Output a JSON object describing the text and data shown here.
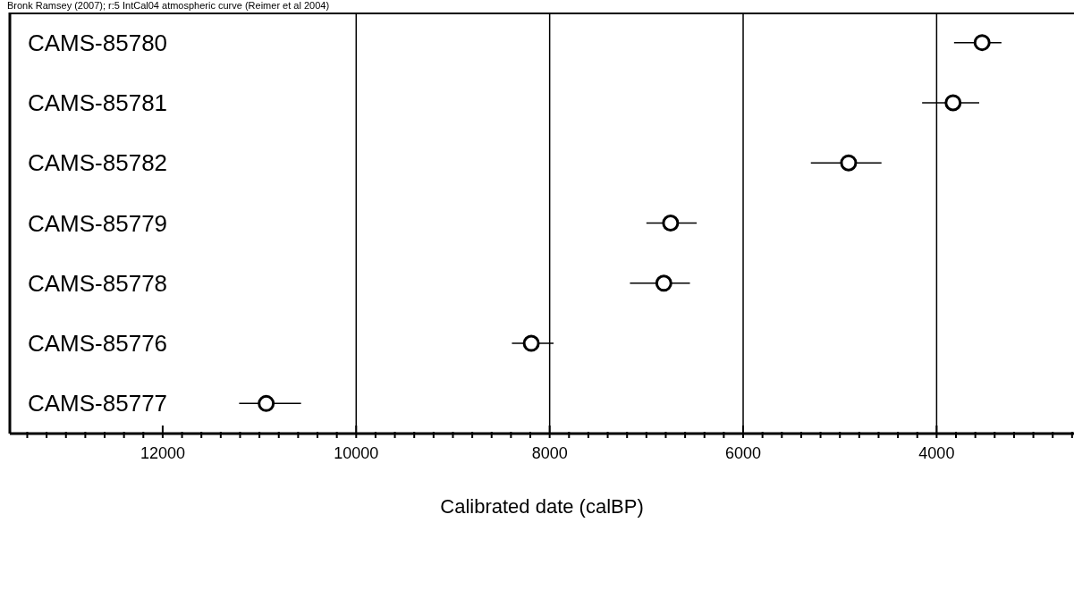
{
  "chart_data": {
    "type": "scatter",
    "orientation": "horizontal",
    "title": "Bronk Ramsey (2007); r:5 IntCal04 atmospheric curve (Reimer et al 2004)",
    "xlabel": "Calibrated date (calBP)",
    "categories": [
      "CAMS-85780",
      "CAMS-85781",
      "CAMS-85782",
      "CAMS-85779",
      "CAMS-85778",
      "CAMS-85776",
      "CAMS-85777"
    ],
    "values": [
      3530,
      3830,
      4910,
      6750,
      6820,
      8190,
      10930
    ],
    "errors": [
      [
        3330,
        3820
      ],
      [
        3560,
        4150
      ],
      [
        4570,
        5300
      ],
      [
        6480,
        7000
      ],
      [
        6550,
        7170
      ],
      [
        7960,
        8390
      ],
      [
        10570,
        11210
      ]
    ],
    "color": "#000000",
    "marker": "circle",
    "xlim": [
      13580,
      2580
    ],
    "xticks": [
      {
        "value": 13400,
        "label": null
      },
      {
        "value": 13200,
        "label": null
      },
      {
        "value": 13000,
        "label": null
      },
      {
        "value": 12800,
        "label": null
      },
      {
        "value": 12600,
        "label": null
      },
      {
        "value": 12400,
        "label": null
      },
      {
        "value": 12200,
        "label": null
      },
      12000,
      {
        "value": 11800,
        "label": null
      },
      {
        "value": 11600,
        "label": null
      },
      {
        "value": 11400,
        "label": null
      },
      {
        "value": 11200,
        "label": null
      },
      {
        "value": 11000,
        "label": null
      },
      {
        "value": 10800,
        "label": null
      },
      {
        "value": 10600,
        "label": null
      },
      {
        "value": 10400,
        "label": null
      },
      {
        "value": 10200,
        "label": null
      },
      10000,
      {
        "value": 9800,
        "label": null
      },
      {
        "value": 9600,
        "label": null
      },
      {
        "value": 9400,
        "label": null
      },
      {
        "value": 9200,
        "label": null
      },
      {
        "value": 9000,
        "label": null
      },
      {
        "value": 8800,
        "label": null
      },
      {
        "value": 8600,
        "label": null
      },
      {
        "value": 8400,
        "label": null
      },
      {
        "value": 8200,
        "label": null
      },
      8000,
      {
        "value": 7800,
        "label": null
      },
      {
        "value": 7600,
        "label": null
      },
      {
        "value": 7400,
        "label": null
      },
      {
        "value": 7200,
        "label": null
      },
      {
        "value": 7000,
        "label": null
      },
      {
        "value": 6800,
        "label": null
      },
      {
        "value": 6600,
        "label": null
      },
      {
        "value": 6400,
        "label": null
      },
      {
        "value": 6200,
        "label": null
      },
      6000,
      {
        "value": 5800,
        "label": null
      },
      {
        "value": 5600,
        "label": null
      },
      {
        "value": 5400,
        "label": null
      },
      {
        "value": 5200,
        "label": null
      },
      {
        "value": 5000,
        "label": null
      },
      {
        "value": 4800,
        "label": null
      },
      {
        "value": 4600,
        "label": null
      },
      {
        "value": 4400,
        "label": null
      },
      {
        "value": 4200,
        "label": null
      },
      4000,
      {
        "value": 3800,
        "label": null
      },
      {
        "value": 3600,
        "label": null
      },
      {
        "value": 3400,
        "label": null
      },
      {
        "value": 3200,
        "label": null
      },
      {
        "value": 3000,
        "label": null
      },
      {
        "value": 2800,
        "label": null
      },
      {
        "value": 2600,
        "label": null
      }
    ],
    "ref_lines": [
      {
        "axis": "x",
        "value": 10000,
        "color": "#000000"
      },
      {
        "axis": "x",
        "value": 8000,
        "color": "#000000"
      },
      {
        "axis": "x",
        "value": 6000,
        "color": "#000000"
      },
      {
        "axis": "x",
        "value": 4000,
        "color": "#000000"
      }
    ],
    "grid": false,
    "legend": false
  }
}
